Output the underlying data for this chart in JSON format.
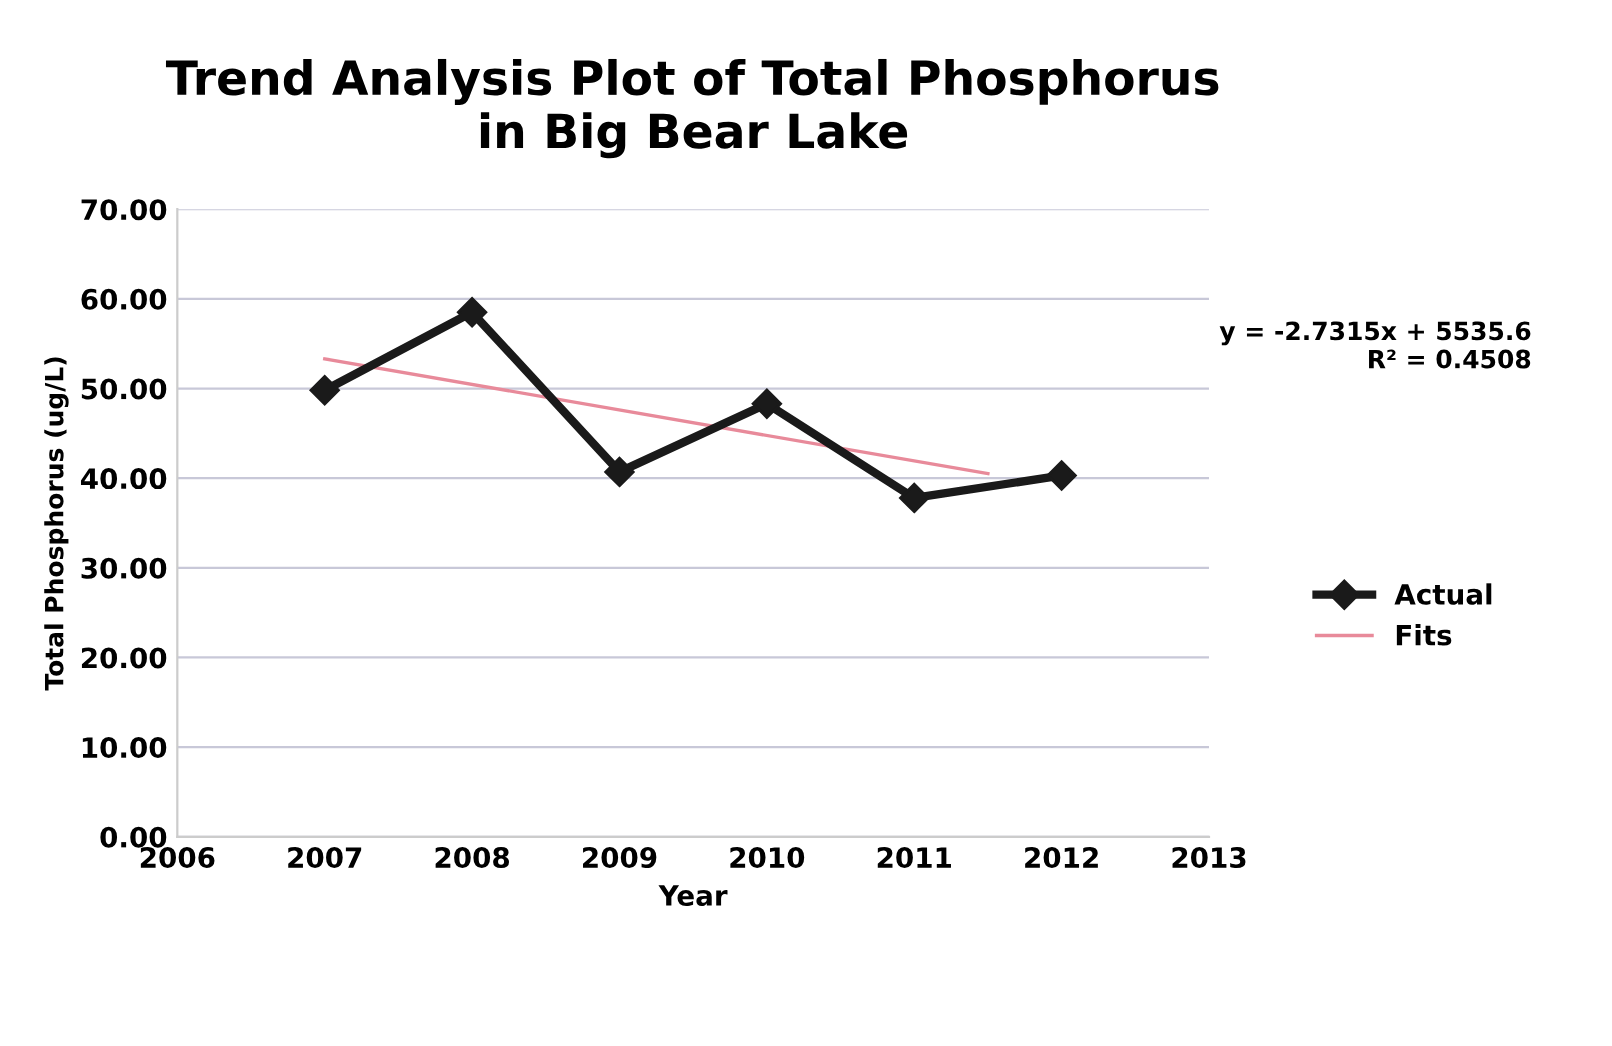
{
  "chart_data": {
    "type": "line",
    "title": "Trend Analysis Plot of Total Phosphorus\nin Big Bear Lake",
    "xlabel": "Year",
    "ylabel": "Total Phosphorus (ug/L)",
    "series": [
      {
        "name": "Actual",
        "color": "#1a1a1a",
        "x": [
          2007,
          2008,
          2009,
          2010,
          2011,
          2012
        ],
        "values": [
          49.8,
          58.5,
          40.7,
          48.3,
          37.8,
          40.3
        ],
        "marker": "diamond",
        "line_style": "solid"
      },
      {
        "name": "Fits",
        "color": "#e88a9a",
        "x": [
          2007,
          2011.5
        ],
        "values": [
          53.3,
          40.5
        ],
        "marker": "none",
        "line_style": "solid"
      }
    ],
    "annotations": [
      "y = -2.7315x + 5535.6\nR² = 0.4508"
    ],
    "xlim": [
      2006,
      2013
    ],
    "xticks": [
      2006,
      2007,
      2008,
      2009,
      2010,
      2011,
      2012,
      2013
    ],
    "ylim": [
      0,
      70
    ],
    "yticks": [
      {
        "value": 0,
        "label": "0.00"
      },
      {
        "value": 10,
        "label": "10.00"
      },
      {
        "value": 20,
        "label": "20.00"
      },
      {
        "value": 30,
        "label": "30.00"
      },
      {
        "value": 40,
        "label": "40.00"
      },
      {
        "value": 50,
        "label": "50.00"
      },
      {
        "value": 60,
        "label": "60.00"
      },
      {
        "value": 70,
        "label": "70.00"
      }
    ],
    "grid": "y",
    "legend": "right"
  }
}
